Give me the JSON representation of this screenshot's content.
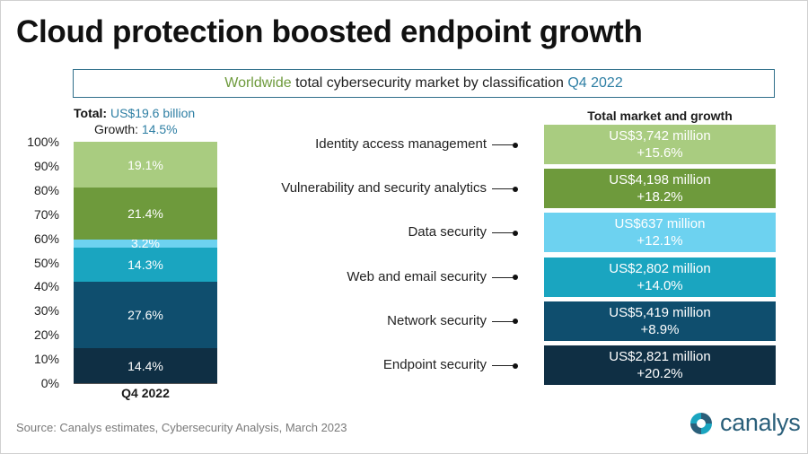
{
  "title": "Cloud protection boosted endpoint growth",
  "subtitle": {
    "part1": "Worldwide",
    "part2": "total cybersecurity market by classification",
    "part3": "Q4 2022"
  },
  "total": {
    "label": "Total:",
    "value": "US$19.6 billion"
  },
  "growth": {
    "label": "Growth:",
    "value": "14.5%"
  },
  "market_header": "Total market and growth",
  "source": "Source:  Canalys estimates, Cybersecurity Analysis, March 2023",
  "brand": "canalys",
  "chart_data": {
    "type": "bar",
    "stacked": true,
    "percent_axis": true,
    "categories": [
      "Q4 2022"
    ],
    "ylim": [
      0,
      100
    ],
    "yticks": [
      "0%",
      "10%",
      "20%",
      "30%",
      "40%",
      "50%",
      "60%",
      "70%",
      "80%",
      "90%",
      "100%"
    ],
    "series": [
      {
        "name": "Endpoint security",
        "values": [
          14.4
        ],
        "label": "14.4%",
        "color": "#0f2f44",
        "market": "US$2,821 million",
        "growth": "+20.2%"
      },
      {
        "name": "Network security",
        "values": [
          27.6
        ],
        "label": "27.6%",
        "color": "#0f4e6e",
        "market": "US$5,419 million",
        "growth": "+8.9%"
      },
      {
        "name": "Web and email security",
        "values": [
          14.3
        ],
        "label": "14.3%",
        "color": "#1aa5c0",
        "market": "US$2,802 million",
        "growth": "+14.0%"
      },
      {
        "name": "Data security",
        "values": [
          3.2
        ],
        "label": "3.2%",
        "color": "#6dd2f0",
        "market": "US$637 million",
        "growth": "+12.1%"
      },
      {
        "name": "Vulnerability and security analytics",
        "values": [
          21.4
        ],
        "label": "21.4%",
        "color": "#6e9a3c",
        "market": "US$4,198 million",
        "growth": "+18.2%"
      },
      {
        "name": "Identity access management",
        "values": [
          19.1
        ],
        "label": "19.1%",
        "color": "#a9cc80",
        "market": "US$3,742 million",
        "growth": "+15.6%"
      }
    ]
  }
}
